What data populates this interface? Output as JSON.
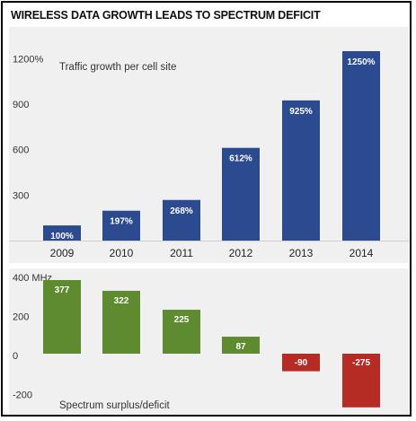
{
  "title": "WIRELESS DATA GROWTH LEADS TO SPECTRUM DEFICIT",
  "colors": {
    "blue": "#2b4a8f",
    "green": "#5e8a30",
    "red": "#b52c25",
    "panel": "#f0f0f0"
  },
  "chart_data": [
    {
      "type": "bar",
      "title": "Traffic growth per cell site",
      "categories": [
        "2009",
        "2010",
        "2011",
        "2012",
        "2013",
        "2014"
      ],
      "values": [
        100,
        197,
        268,
        612,
        925,
        1250
      ],
      "value_labels": [
        "100%",
        "197%",
        "268%",
        "612%",
        "925%",
        "1250%"
      ],
      "yticks": [
        "1200%",
        "900",
        "600",
        "300"
      ],
      "ytick_values": [
        1200,
        900,
        600,
        300
      ],
      "ylim": [
        0,
        1300
      ],
      "grid": false
    },
    {
      "type": "bar",
      "title": "Spectrum surplus/deficit",
      "categories": [
        "2009",
        "2010",
        "2011",
        "2012",
        "2013",
        "2014"
      ],
      "values": [
        377,
        322,
        225,
        87,
        -90,
        -275
      ],
      "value_labels": [
        "377",
        "322",
        "225",
        "87",
        "-90",
        "-275"
      ],
      "yticks": [
        "400 MHz",
        "200",
        "0",
        "-200"
      ],
      "ytick_values": [
        400,
        200,
        0,
        -200
      ],
      "ylim": [
        -300,
        420
      ],
      "grid": false
    }
  ]
}
